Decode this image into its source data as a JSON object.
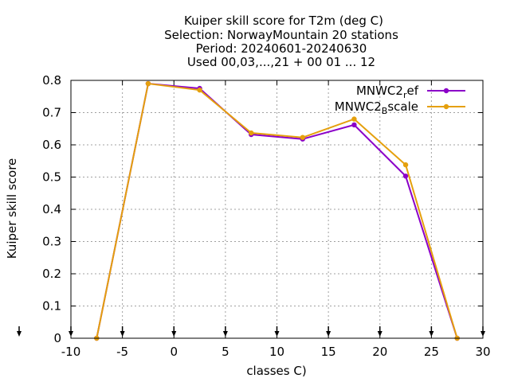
{
  "chart_data": {
    "type": "line",
    "title_lines": [
      "Kuiper skill score  for T2m (deg C)",
      "Selection: NorwayMountain      20 stations",
      "Period: 20240601-20240630",
      "Used 00,03,...,21 + 00 01 ... 12"
    ],
    "xlabel": "classes C)",
    "ylabel": "Kuiper skill score",
    "xlim": [
      -10,
      30
    ],
    "ylim": [
      0,
      0.8
    ],
    "xticks": [
      -10,
      -5,
      0,
      5,
      10,
      15,
      20,
      25,
      30
    ],
    "yticks": [
      0,
      0.1,
      0.2,
      0.3,
      0.4,
      0.5,
      0.6,
      0.7,
      0.8
    ],
    "xtick_labels": [
      "-10",
      "-5",
      "0",
      "5",
      "10",
      "15",
      "20",
      "25",
      "30"
    ],
    "ytick_labels": [
      "0",
      "0.1",
      "0.2",
      "0.3",
      "0.4",
      "0.5",
      "0.6",
      "0.7",
      "0.8"
    ],
    "grid": true,
    "legend_position": "top-right",
    "arrow_markers_x": [
      -10,
      -5,
      0,
      5,
      10,
      15,
      20,
      25,
      30
    ],
    "series": [
      {
        "legend_base": "MNWC2",
        "legend_sub": "r",
        "legend_rest": "ef",
        "color": "#8b00c8",
        "x": [
          -7.5,
          -2.5,
          2.5,
          7.5,
          12.5,
          17.5,
          22.5,
          27.5
        ],
        "y": [
          0.0,
          0.79,
          0.775,
          0.632,
          0.618,
          0.662,
          0.503,
          0.0
        ]
      },
      {
        "legend_base": "MNWC2",
        "legend_sub": "B",
        "legend_rest": "scale",
        "color": "#e5a00d",
        "x": [
          -7.5,
          -2.5,
          2.5,
          7.5,
          12.5,
          17.5,
          22.5,
          27.5
        ],
        "y": [
          0.0,
          0.79,
          0.77,
          0.637,
          0.623,
          0.68,
          0.538,
          0.0
        ]
      }
    ]
  }
}
